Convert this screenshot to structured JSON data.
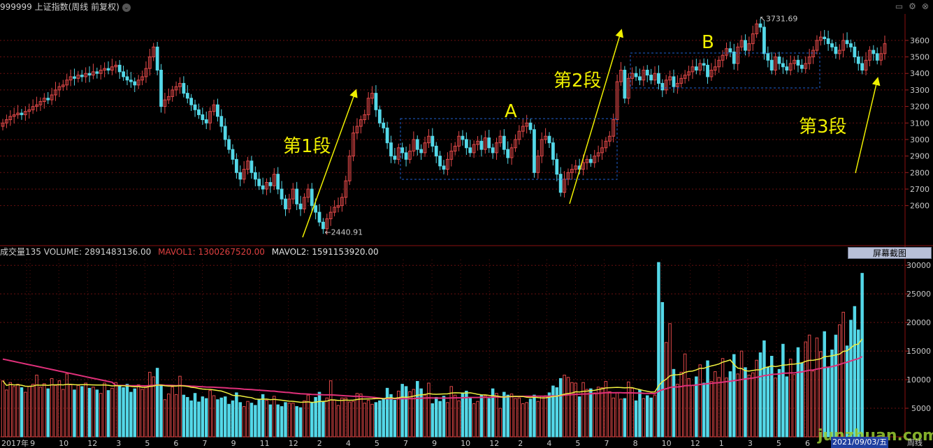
{
  "title_bar": {
    "text": "999999 上证指数(周线 前复权)",
    "chevron": "chevron-down-icon"
  },
  "window_icons": [
    "minimize-icon",
    "gear-icon",
    "close-icon"
  ],
  "volume_header": {
    "label": "成交量135 VOLUME: 2891483136.00",
    "mavol1": "MAVOL1: 1300267520.00",
    "mavol2": "MAVOL2: 1591153920.00"
  },
  "screenshot_button": "屏幕截图",
  "date_box": "2021/09/03/五",
  "period_label": "周线",
  "watermark": "junzhuan.com",
  "colors": {
    "up": "#e04848",
    "down": "#54d8e8",
    "mavol1": "#f0f040",
    "mavol2": "#e0307a",
    "annotation": "#f0f000",
    "box": "#2060d0"
  },
  "chart_data": [
    {
      "type": "candlestick",
      "title": "",
      "ylim": [
        2400,
        3760
      ],
      "y_ticks": [
        2600,
        2700,
        2800,
        2900,
        3000,
        3100,
        3200,
        3300,
        3400,
        3500,
        3600
      ],
      "high_marker": {
        "label": "3731.69",
        "value": 3731.69
      },
      "low_marker": {
        "label": "2440.91",
        "value": 2440.91
      },
      "annotations": [
        {
          "text": "第1段"
        },
        {
          "text": "第2段"
        },
        {
          "text": "第3段"
        },
        {
          "text": "A"
        },
        {
          "text": "B"
        }
      ],
      "close": [
        3100,
        3120,
        3140,
        3150,
        3160,
        3150,
        3170,
        3180,
        3200,
        3210,
        3230,
        3250,
        3240,
        3270,
        3300,
        3320,
        3330,
        3360,
        3380,
        3370,
        3390,
        3380,
        3400,
        3390,
        3410,
        3400,
        3420,
        3430,
        3420,
        3440,
        3450,
        3410,
        3380,
        3360,
        3350,
        3330,
        3360,
        3380,
        3430,
        3500,
        3560,
        3420,
        3200,
        3240,
        3260,
        3300,
        3320,
        3340,
        3280,
        3250,
        3210,
        3180,
        3150,
        3120,
        3100,
        3170,
        3210,
        3140,
        3080,
        3000,
        2940,
        2880,
        2800,
        2760,
        2820,
        2870,
        2800,
        2760,
        2720,
        2700,
        2740,
        2720,
        2790,
        2700,
        2640,
        2580,
        2640,
        2700,
        2610,
        2580,
        2650,
        2700,
        2600,
        2560,
        2500,
        2460,
        2520,
        2560,
        2590,
        2600,
        2650,
        2750,
        2900,
        3040,
        3080,
        3120,
        3150,
        3250,
        3280,
        3180,
        3100,
        3070,
        2980,
        2900,
        2880,
        2950,
        2920,
        2880,
        2930,
        3000,
        2940,
        2920,
        2980,
        3020,
        2960,
        2900,
        2840,
        2820,
        2880,
        2930,
        2960,
        3020,
        3000,
        2950,
        2920,
        2970,
        2990,
        2940,
        3010,
        2950,
        2920,
        2980,
        3020,
        2940,
        2890,
        2950,
        3000,
        3050,
        3080,
        3100,
        3060,
        2800,
        2900,
        3000,
        3020,
        2980,
        2880,
        2790,
        2680,
        2760,
        2800,
        2820,
        2840,
        2820,
        2860,
        2880,
        2860,
        2900,
        2920,
        2950,
        2990,
        3020,
        3120,
        3350,
        3420,
        3250,
        3370,
        3400,
        3380,
        3360,
        3420,
        3390,
        3360,
        3400,
        3340,
        3300,
        3360,
        3380,
        3320,
        3340,
        3370,
        3390,
        3410,
        3440,
        3420,
        3460,
        3450,
        3380,
        3420,
        3440,
        3480,
        3510,
        3550,
        3530,
        3460,
        3560,
        3600,
        3540,
        3580,
        3640,
        3700,
        3680,
        3520,
        3480,
        3420,
        3500,
        3460,
        3440,
        3420,
        3460,
        3480,
        3450,
        3430,
        3460,
        3500,
        3540,
        3600,
        3620,
        3610,
        3580,
        3560,
        3520,
        3540,
        3600,
        3580,
        3560,
        3500,
        3460,
        3420,
        3480,
        3540,
        3520,
        3480,
        3520,
        3580
      ]
    },
    {
      "type": "bar",
      "title": "",
      "ylim": [
        0,
        31000
      ],
      "y_ticks": [
        5000,
        10000,
        15000,
        20000,
        25000,
        30000
      ],
      "x_tick_labels": [
        "2017年",
        "9",
        "10",
        "12",
        "3",
        "5",
        "6",
        "7",
        "9",
        "11",
        "12",
        "2",
        "4",
        "5",
        "7",
        "9",
        "10",
        "12",
        "2",
        "4",
        "5",
        "7",
        "8",
        "10",
        "12",
        "1",
        "3",
        "5",
        "6"
      ],
      "series": [
        {
          "name": "MAVOL1"
        },
        {
          "name": "MAVOL2"
        }
      ],
      "values": [
        9800,
        8200,
        9500,
        8800,
        9200,
        8600,
        7800,
        8800,
        9200,
        10800,
        8700,
        9300,
        8400,
        10200,
        9000,
        9800,
        8300,
        11000,
        9100,
        8200,
        9000,
        8800,
        9400,
        8500,
        8700,
        8200,
        7600,
        9400,
        8100,
        8500,
        9500,
        9000,
        8600,
        9200,
        7800,
        8400,
        9100,
        8300,
        8900,
        11300,
        10500,
        12000,
        9100,
        6500,
        7500,
        8700,
        7400,
        10600,
        7300,
        6900,
        6300,
        7600,
        6100,
        7000,
        6700,
        8100,
        7200,
        6500,
        6800,
        7000,
        5700,
        6300,
        7700,
        6000,
        5300,
        6200,
        5900,
        5500,
        6600,
        7400,
        6400,
        5600,
        7100,
        5600,
        5300,
        6000,
        5900,
        5900,
        5300,
        5100,
        6300,
        7300,
        6000,
        6900,
        7800,
        6200,
        6800,
        9800,
        6400,
        5500,
        6800,
        6800,
        6100,
        6200,
        7600,
        7500,
        5900,
        6400,
        5700,
        6000,
        6300,
        6700,
        8500,
        7400,
        6400,
        8000,
        9200,
        8800,
        7900,
        8300,
        9700,
        8400,
        7300,
        9400,
        5800,
        6900,
        6200,
        7100,
        6000,
        8800,
        7300,
        6300,
        7700,
        8000,
        6900,
        5800,
        6200,
        7300,
        7200,
        6700,
        8400,
        7600,
        5000,
        7800,
        7300,
        7500,
        6700,
        6800,
        5800,
        6000,
        6600,
        7300,
        6200,
        7100,
        7200,
        7700,
        8900,
        8600,
        10200,
        10800,
        10400,
        9500,
        9400,
        7000,
        9500,
        8300,
        8400,
        7700,
        8700,
        8600,
        9700,
        7900,
        6800,
        7700,
        6600,
        6700,
        9600,
        8500,
        6300,
        8200,
        6700,
        7200,
        6800,
        7300,
        30500,
        23500,
        16500,
        19800,
        11800,
        9200,
        11300,
        14500,
        10200,
        9000,
        10500,
        12600,
        9400,
        13300,
        9700,
        11400,
        10400,
        13700,
        10300,
        11400,
        14400,
        11000,
        15000,
        12100,
        10800,
        11200,
        13400,
        14700,
        16800,
        12200,
        14100,
        10300,
        11800,
        16200,
        10500,
        13600,
        10900,
        15600,
        12900,
        16600,
        17800,
        11500,
        17300,
        14900,
        18400,
        12200,
        15200,
        17800,
        19600,
        21800,
        15900,
        20400,
        22800,
        18700,
        28600
      ]
    }
  ]
}
